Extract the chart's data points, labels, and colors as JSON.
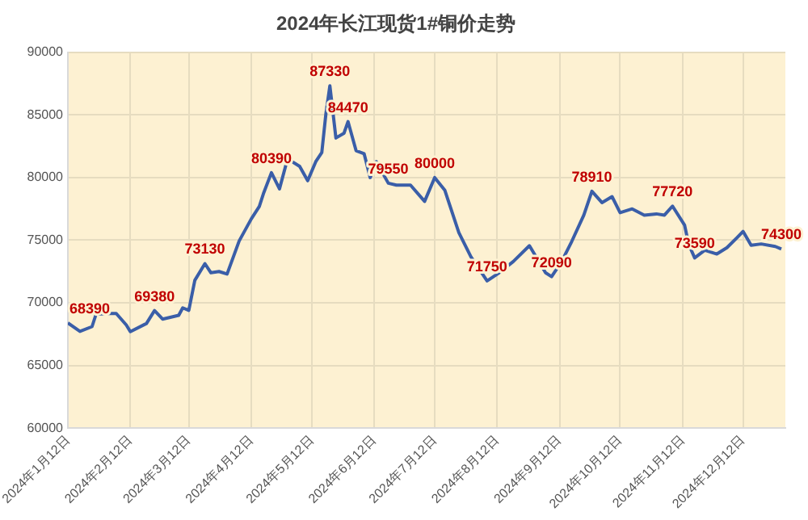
{
  "chart_data": {
    "type": "line",
    "title": "2024年长江现货1#铜价走势",
    "x": [
      "2024-01-12",
      "2024-01-18",
      "2024-01-24",
      "2024-01-26",
      "2024-02-02",
      "2024-02-05",
      "2024-02-10",
      "2024-02-12",
      "2024-02-20",
      "2024-02-24",
      "2024-02-28",
      "2024-03-07",
      "2024-03-09",
      "2024-03-12",
      "2024-03-15",
      "2024-03-20",
      "2024-03-23",
      "2024-03-27",
      "2024-03-31",
      "2024-04-06",
      "2024-04-12",
      "2024-04-16",
      "2024-04-18",
      "2024-04-22",
      "2024-04-26",
      "2024-04-30",
      "2024-05-06",
      "2024-05-10",
      "2024-05-14",
      "2024-05-17",
      "2024-05-19",
      "2024-05-21",
      "2024-05-24",
      "2024-05-28",
      "2024-05-30",
      "2024-06-03",
      "2024-06-07",
      "2024-06-10",
      "2024-06-13",
      "2024-06-19",
      "2024-06-23",
      "2024-06-30",
      "2024-07-07",
      "2024-07-12",
      "2024-07-17",
      "2024-07-24",
      "2024-07-30",
      "2024-08-07",
      "2024-08-13",
      "2024-08-20",
      "2024-08-28",
      "2024-09-05",
      "2024-09-08",
      "2024-09-13",
      "2024-09-18",
      "2024-09-24",
      "2024-09-28",
      "2024-10-03",
      "2024-10-08",
      "2024-10-12",
      "2024-10-18",
      "2024-10-24",
      "2024-10-30",
      "2024-11-03",
      "2024-11-07",
      "2024-11-13",
      "2024-11-15",
      "2024-11-18",
      "2024-11-23",
      "2024-11-29",
      "2024-12-04",
      "2024-12-09",
      "2024-12-12",
      "2024-12-16",
      "2024-12-21",
      "2024-12-28",
      "2024-12-31"
    ],
    "series": [
      {
        "color": "#3a5ea8",
        "values": [
          68390,
          67720,
          68100,
          69100,
          69150,
          69150,
          68230,
          67700,
          68350,
          69380,
          68700,
          69000,
          69600,
          69400,
          71800,
          73130,
          72400,
          72500,
          72300,
          74940,
          76700,
          77700,
          78700,
          80390,
          79100,
          81500,
          80900,
          79750,
          81270,
          82000,
          85060,
          87330,
          83160,
          83540,
          84470,
          82150,
          81900,
          80000,
          81270,
          79550,
          79400,
          79400,
          78100,
          80000,
          79000,
          75600,
          73670,
          71750,
          72400,
          73300,
          74560,
          72400,
          72090,
          73300,
          74900,
          77000,
          78910,
          78000,
          78480,
          77200,
          77500,
          77000,
          77100,
          77000,
          77720,
          76200,
          74680,
          73590,
          74200,
          73900,
          74400,
          75200,
          75700,
          74600,
          74700,
          74500,
          74300
        ]
      }
    ],
    "xlim": [
      "2024-01-12",
      "2025-01-02"
    ],
    "xticks": [
      {
        "value": "2024-01-12",
        "label": "2024年1月12日"
      },
      {
        "value": "2024-02-12",
        "label": "2024年2月12日"
      },
      {
        "value": "2024-03-12",
        "label": "2024年3月12日"
      },
      {
        "value": "2024-04-12",
        "label": "2024年4月12日"
      },
      {
        "value": "2024-05-12",
        "label": "2024年5月12日"
      },
      {
        "value": "2024-06-12",
        "label": "2024年6月12日"
      },
      {
        "value": "2024-07-12",
        "label": "2024年7月12日"
      },
      {
        "value": "2024-08-12",
        "label": "2024年8月12日"
      },
      {
        "value": "2024-09-12",
        "label": "2024年9月12日"
      },
      {
        "value": "2024-10-12",
        "label": "2024年10月12日"
      },
      {
        "value": "2024-11-12",
        "label": "2024年11月12日"
      },
      {
        "value": "2024-12-12",
        "label": "2024年12月12日"
      }
    ],
    "ylim": [
      60000,
      90000
    ],
    "yticks": [
      60000,
      65000,
      70000,
      75000,
      80000,
      85000,
      90000
    ],
    "grid": true,
    "legend": false,
    "marker": "none",
    "line_style": "solid",
    "annotations": [
      {
        "text": "68390",
        "x": "2024-01-12",
        "y": 68390
      },
      {
        "text": "69380",
        "x": "2024-02-24",
        "y": 69380
      },
      {
        "text": "73130",
        "x": "2024-03-20",
        "y": 73130
      },
      {
        "text": "80390",
        "x": "2024-04-22",
        "y": 80390
      },
      {
        "text": "87330",
        "x": "2024-05-21",
        "y": 87330
      },
      {
        "text": "84470",
        "x": "2024-05-30",
        "y": 84470
      },
      {
        "text": "79550",
        "x": "2024-06-19",
        "y": 79550
      },
      {
        "text": "80000",
        "x": "2024-07-12",
        "y": 80000
      },
      {
        "text": "71750",
        "x": "2024-08-07",
        "y": 71750
      },
      {
        "text": "72090",
        "x": "2024-09-08",
        "y": 72090
      },
      {
        "text": "78910",
        "x": "2024-09-28",
        "y": 78910
      },
      {
        "text": "77720",
        "x": "2024-11-07",
        "y": 77720
      },
      {
        "text": "73590",
        "x": "2024-11-18",
        "y": 73590
      },
      {
        "text": "74300",
        "x": "2024-12-31",
        "y": 74300
      }
    ]
  }
}
